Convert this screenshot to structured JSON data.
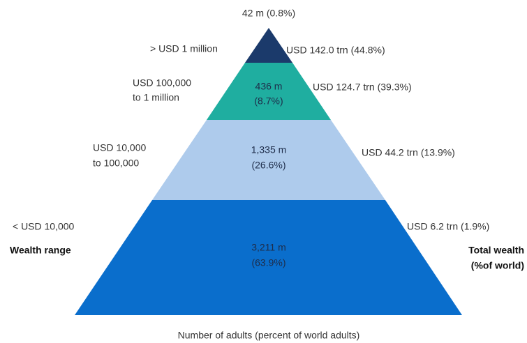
{
  "title_bottom": "Number of adults (percent of world adults)",
  "left_heading": "Wealth range",
  "right_heading": [
    "Total wealth",
    "(%of world)"
  ],
  "tiers": [
    {
      "range": [
        "> USD 1 million"
      ],
      "adults": [
        "42 m (0.8%)"
      ],
      "wealth": "USD 142.0 trn (44.8%)"
    },
    {
      "range": [
        "USD 100,000",
        "to 1 million"
      ],
      "adults": [
        "436 m",
        "(8.7%)"
      ],
      "wealth": "USD 124.7 trn (39.3%)"
    },
    {
      "range": [
        "USD 10,000",
        "to 100,000"
      ],
      "adults": [
        "1,335 m",
        "(26.6%)"
      ],
      "wealth": "USD 44.2 trn (13.9%)"
    },
    {
      "range": [
        "< USD 10,000"
      ],
      "adults": [
        "3,211 m",
        "(63.9%)"
      ],
      "wealth": "USD 6.2 trn (1.9%)"
    }
  ]
}
